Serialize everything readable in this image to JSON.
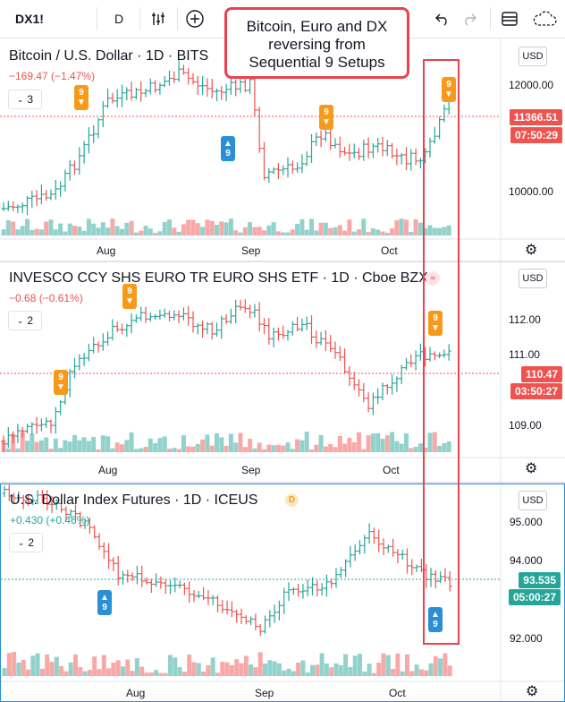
{
  "toolbar": {
    "symbol": "DX1!",
    "interval": "D",
    "icons": [
      "indicators-icon",
      "add-compare-icon",
      "undo-icon",
      "redo-icon",
      "layout-icon",
      "cloud-icon"
    ]
  },
  "callout": {
    "lines": [
      "Bitcoin, Euro and DX",
      "reversing from",
      "Sequential 9 Setups"
    ]
  },
  "panes": [
    {
      "title": "Bitcoin / U.S. Dollar · 1D · BITS",
      "change": "−169.47 (−1.47%)",
      "indicators_count": "3",
      "currency": "USD",
      "price_tag": "11366.51",
      "countdown": "07:50:29",
      "axis_prices": [
        "12000.00",
        "10000.00"
      ],
      "dates": [
        "Aug",
        "Sep",
        "Oct"
      ],
      "sequential": [
        {
          "type": "sell",
          "count": "9"
        },
        {
          "type": "buy",
          "count": "9"
        },
        {
          "type": "sell",
          "count": "9"
        },
        {
          "type": "sell",
          "count": "9"
        }
      ],
      "colors": {
        "up": "#26a69a",
        "down": "#ef5350",
        "tag": "#ef5350"
      }
    },
    {
      "title": "INVESCO CCY SHS EURO TR EURO SHS ETF · 1D · Cboe BZX",
      "change": "−0.68 (−0.61%)",
      "indicators_count": "2",
      "currency": "USD",
      "price_tag": "110.47",
      "countdown": "03:50:27",
      "axis_prices": [
        "112.00",
        "111.00",
        "109.00"
      ],
      "dates": [
        "Aug",
        "Sep",
        "Oct"
      ],
      "sequential": [
        {
          "type": "sell",
          "count": "9"
        },
        {
          "type": "sell",
          "count": "9"
        },
        {
          "type": "sell",
          "count": "9"
        }
      ],
      "colors": {
        "up": "#26a69a",
        "down": "#ef5350",
        "tag": "#ef5350"
      }
    },
    {
      "title": "U.S. Dollar Index Futures · 1D · ICEUS",
      "badge": "D",
      "change": "+0.430 (+0.46%)",
      "indicators_count": "2",
      "currency": "USD",
      "price_tag": "93.535",
      "countdown": "05:00:27",
      "axis_prices": [
        "95.000",
        "94.000",
        "92.000"
      ],
      "dates": [
        "Aug",
        "Sep",
        "Oct"
      ],
      "sequential": [
        {
          "type": "buy",
          "count": "9"
        },
        {
          "type": "buy",
          "count": "9"
        }
      ],
      "colors": {
        "up": "#26a69a",
        "down": "#ef5350",
        "tag": "#26a69a"
      }
    }
  ]
}
